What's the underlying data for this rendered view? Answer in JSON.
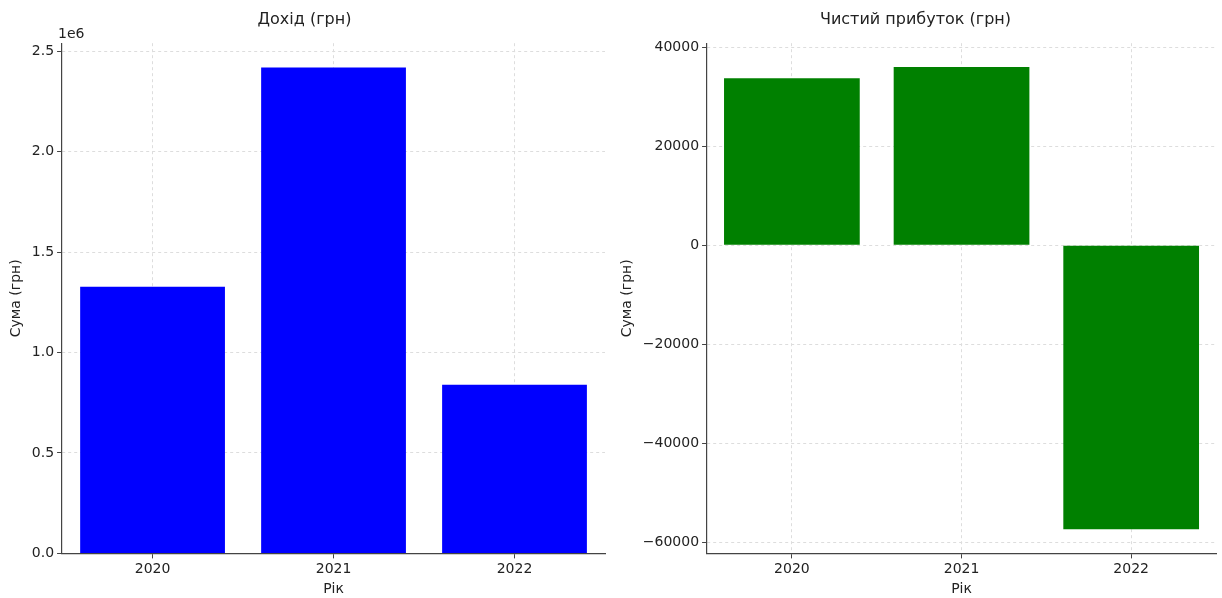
{
  "chart_data": [
    {
      "type": "bar",
      "title": "Дохід (грн)",
      "xlabel": "Рік",
      "ylabel": "Сума (грн)",
      "categories": [
        "2020",
        "2021",
        "2022"
      ],
      "values": [
        1.328,
        2.419,
        0.839
      ],
      "color": "#0000ff",
      "ylim": [
        0,
        2.54
      ],
      "yticks": [
        {
          "value": 0,
          "label": "0.0"
        },
        {
          "value": 0.5,
          "label": "0.5"
        },
        {
          "value": 1,
          "label": "1.0"
        },
        {
          "value": 1.5,
          "label": "1.5"
        },
        {
          "value": 2,
          "label": "2.0"
        },
        {
          "value": 2.5,
          "label": "2.5"
        }
      ],
      "grid": true,
      "annotations": [
        "1e6"
      ]
    },
    {
      "type": "bar",
      "title": "Чистий прибуток (грн)",
      "xlabel": "Рік",
      "ylabel": "Сума (грн)",
      "categories": [
        "2020",
        "2021",
        "2022"
      ],
      "values": [
        33700,
        36000,
        -57300
      ],
      "color": "#008000",
      "ylim": [
        -62200,
        40800
      ],
      "yticks": [
        {
          "value": -60000,
          "label": "−60000"
        },
        {
          "value": -40000,
          "label": "−40000"
        },
        {
          "value": -20000,
          "label": "−20000"
        },
        0,
        20000,
        40000
      ],
      "grid": true
    }
  ]
}
